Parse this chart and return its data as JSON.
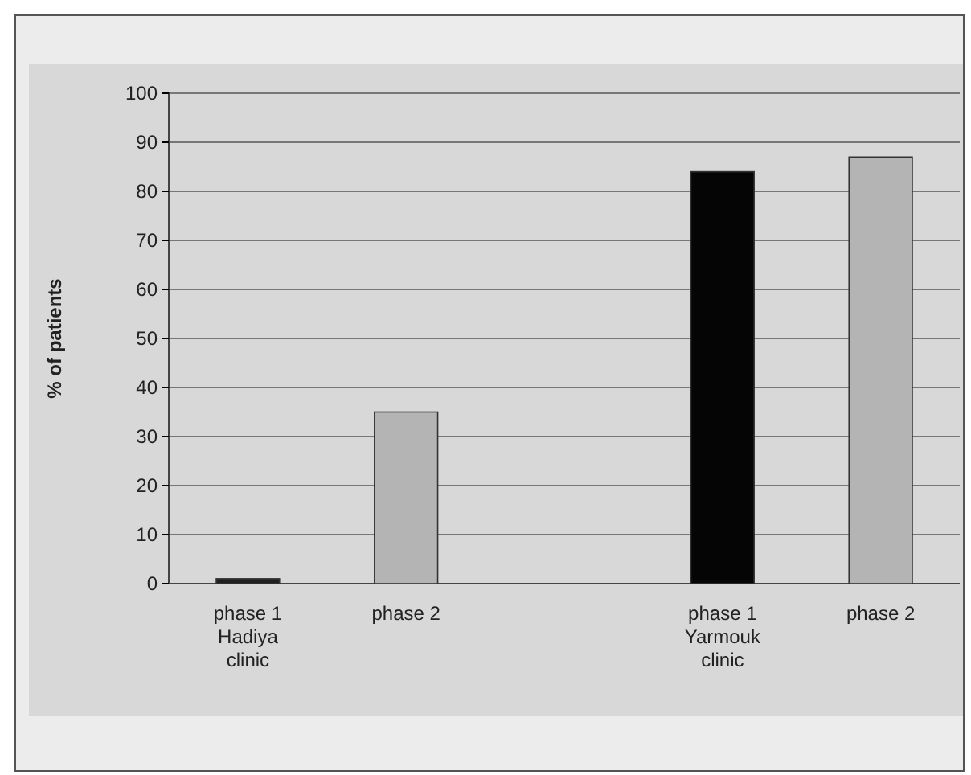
{
  "chart_data": {
    "type": "bar",
    "ylabel": "% of patients",
    "categories": [
      "phase 1 Hadiya clinic",
      "phase 2",
      null,
      "phase 1 Yarmouk clinic",
      "phase 2"
    ],
    "values": [
      1,
      35,
      null,
      84,
      87
    ],
    "colors": [
      "#202020",
      "#b4b4b4",
      null,
      "#050505",
      "#b4b4b4"
    ],
    "ylim": [
      0,
      100
    ],
    "yticks": [
      0,
      10,
      20,
      30,
      40,
      50,
      60,
      70,
      80,
      90,
      100
    ],
    "grid": "y"
  }
}
